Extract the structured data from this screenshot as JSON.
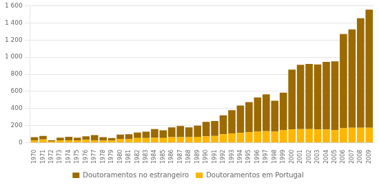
{
  "chart_data": {
    "type": "bar",
    "stacked": true,
    "categories": [
      "1970",
      "1971",
      "1972",
      "1973",
      "1974",
      "1975",
      "1976",
      "1977",
      "1978",
      "1979",
      "1980",
      "1981",
      "1982",
      "1983",
      "1984",
      "1985",
      "1986",
      "1987",
      "1988",
      "1989",
      "1990",
      "1991",
      "1992",
      "1993",
      "1994",
      "1995",
      "1996",
      "1997",
      "1998",
      "1999",
      "2000",
      "2001",
      "2002",
      "2003",
      "2004",
      "2005",
      "2006",
      "2007",
      "2008",
      "2009"
    ],
    "series": [
      {
        "name": "Doutoramentos em Portugal",
        "color": "#ffb600",
        "values": [
          30,
          40,
          15,
          30,
          30,
          25,
          35,
          30,
          25,
          25,
          45,
          45,
          55,
          55,
          60,
          55,
          65,
          65,
          65,
          70,
          75,
          80,
          100,
          110,
          115,
          125,
          130,
          135,
          130,
          145,
          155,
          160,
          160,
          155,
          155,
          150,
          170,
          175,
          175,
          175
        ]
      },
      {
        "name": "Doutoramentos no estrangeiro",
        "color": "#9b6a00",
        "values": [
          35,
          40,
          15,
          30,
          40,
          35,
          40,
          60,
          40,
          30,
          50,
          55,
          65,
          75,
          100,
          90,
          115,
          130,
          115,
          130,
          170,
          175,
          220,
          270,
          320,
          350,
          400,
          430,
          360,
          440,
          700,
          750,
          760,
          760,
          790,
          800,
          1100,
          1150,
          1280,
          1380
        ]
      }
    ],
    "ylim": [
      0,
      1600
    ],
    "yticks": [
      0,
      200,
      400,
      600,
      800,
      {
        "value": 1000,
        "label": "1 000"
      },
      {
        "value": 1200,
        "label": "1 200"
      },
      {
        "value": 1400,
        "label": "1 400"
      },
      {
        "value": 1600,
        "label": "1 600"
      }
    ],
    "grid": true,
    "legend": "bottom"
  }
}
